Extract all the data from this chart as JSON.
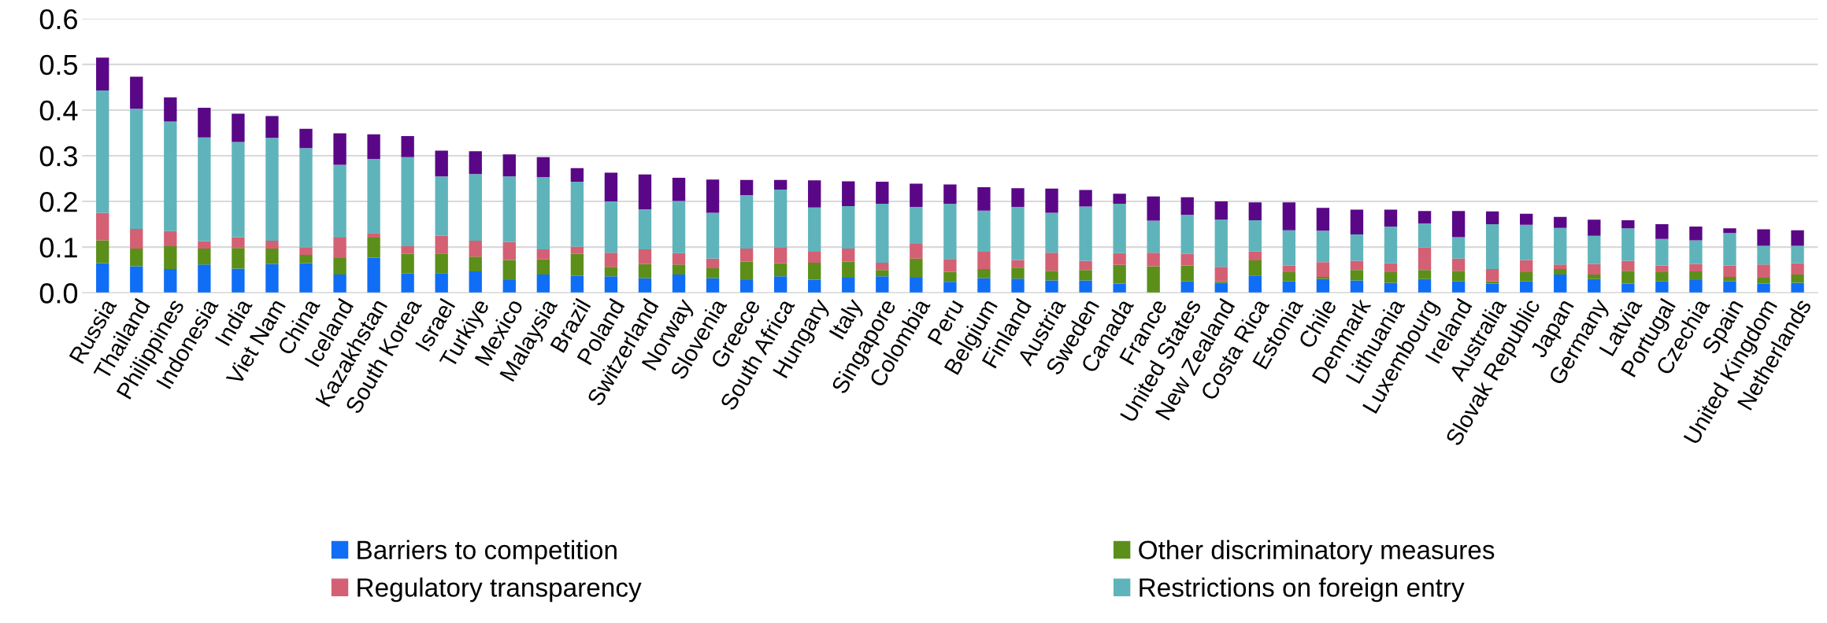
{
  "chart_data": {
    "type": "bar",
    "stacked": true,
    "categories": [
      "Russia",
      "Thailand",
      "Philippines",
      "Indonesia",
      "India",
      "Viet Nam",
      "China",
      "Iceland",
      "Kazakhstan",
      "South Korea",
      "Israel",
      "Turkiye",
      "Mexico",
      "Malaysia",
      "Brazil",
      "Poland",
      "Switzerland",
      "Norway",
      "Slovenia",
      "Greece",
      "South Africa",
      "Hungary",
      "Italy",
      "Singapore",
      "Colombia",
      "Peru",
      "Belgium",
      "Finland",
      "Austria",
      "Sweden",
      "Canada",
      "France",
      "United States",
      "New Zealand",
      "Costa Rica",
      "Estonia",
      "Chile",
      "Denmark",
      "Lithuania",
      "Luxembourg",
      "Ireland",
      "Australia",
      "Slovak Republic",
      "Japan",
      "Germany",
      "Latvia",
      "Portugal",
      "Czechia",
      "Spain",
      "United Kingdom",
      "Netherlands"
    ],
    "series": [
      {
        "name": "Barriers to competition",
        "color": "#0f6ef5",
        "values": [
          0.065,
          0.058,
          0.052,
          0.062,
          0.053,
          0.063,
          0.065,
          0.04,
          0.077,
          0.042,
          0.043,
          0.047,
          0.028,
          0.04,
          0.037,
          0.036,
          0.032,
          0.04,
          0.032,
          0.028,
          0.036,
          0.029,
          0.033,
          0.036,
          0.033,
          0.024,
          0.032,
          0.031,
          0.027,
          0.027,
          0.02,
          0,
          0.025,
          0.022,
          0.038,
          0.025,
          0.03,
          0.027,
          0.022,
          0.03,
          0.025,
          0.02,
          0.025,
          0.04,
          0.03,
          0.02,
          0.025,
          0.028,
          0.025,
          0.02,
          0.022
        ]
      },
      {
        "name": "Other discriminatory measures",
        "color": "#5b8f1a",
        "values": [
          0.05,
          0.039,
          0.05,
          0.035,
          0.045,
          0.034,
          0.018,
          0.036,
          0.044,
          0.043,
          0.043,
          0.032,
          0.044,
          0.033,
          0.048,
          0.021,
          0.031,
          0.022,
          0.022,
          0.04,
          0.029,
          0.037,
          0.035,
          0.014,
          0.042,
          0.022,
          0.02,
          0.024,
          0.021,
          0.023,
          0.041,
          0.058,
          0.035,
          0.003,
          0.033,
          0.02,
          0.005,
          0.023,
          0.023,
          0.02,
          0.023,
          0.005,
          0.02,
          0.012,
          0.01,
          0.028,
          0.02,
          0.019,
          0.01,
          0.013,
          0.018
        ]
      },
      {
        "name": "Regulatory transparency",
        "color": "#d46074",
        "values": [
          0.06,
          0.043,
          0.033,
          0.016,
          0.024,
          0.017,
          0.017,
          0.045,
          0.01,
          0.017,
          0.039,
          0.035,
          0.039,
          0.022,
          0.016,
          0.031,
          0.032,
          0.025,
          0.021,
          0.029,
          0.035,
          0.024,
          0.029,
          0.016,
          0.032,
          0.028,
          0.038,
          0.017,
          0.04,
          0.02,
          0.026,
          0.03,
          0.025,
          0.032,
          0.02,
          0.015,
          0.032,
          0.02,
          0.02,
          0.049,
          0.027,
          0.027,
          0.027,
          0.01,
          0.023,
          0.022,
          0.015,
          0.016,
          0.025,
          0.029,
          0.025
        ]
      },
      {
        "name": "Restrictions on foreign entry",
        "color": "#5fb4bb",
        "values": [
          0.268,
          0.263,
          0.24,
          0.227,
          0.208,
          0.225,
          0.217,
          0.159,
          0.162,
          0.195,
          0.13,
          0.146,
          0.144,
          0.158,
          0.142,
          0.112,
          0.088,
          0.114,
          0.1,
          0.117,
          0.126,
          0.097,
          0.093,
          0.129,
          0.081,
          0.121,
          0.09,
          0.116,
          0.087,
          0.119,
          0.108,
          0.07,
          0.086,
          0.103,
          0.068,
          0.077,
          0.069,
          0.058,
          0.08,
          0.053,
          0.047,
          0.098,
          0.077,
          0.08,
          0.062,
          0.071,
          0.058,
          0.052,
          0.071,
          0.041,
          0.038
        ]
      },
      {
        "color": "#5a0787",
        "values": [
          0.072,
          0.07,
          0.053,
          0.065,
          0.062,
          0.048,
          0.042,
          0.069,
          0.054,
          0.046,
          0.056,
          0.05,
          0.048,
          0.044,
          0.03,
          0.063,
          0.076,
          0.051,
          0.073,
          0.033,
          0.021,
          0.059,
          0.054,
          0.048,
          0.051,
          0.042,
          0.051,
          0.041,
          0.053,
          0.036,
          0.022,
          0.053,
          0.038,
          0.04,
          0.039,
          0.061,
          0.05,
          0.054,
          0.037,
          0.027,
          0.057,
          0.028,
          0.024,
          0.024,
          0.035,
          0.018,
          0.032,
          0.03,
          0.01,
          0.036,
          0.034
        ]
      }
    ],
    "ylim": [
      0,
      0.6
    ],
    "yticks": [
      {
        "value": 0,
        "label": "0.0"
      },
      0.1,
      0.2,
      0.3,
      0.4,
      0.5,
      0.6
    ],
    "grid": "y",
    "legend": "bottom"
  }
}
